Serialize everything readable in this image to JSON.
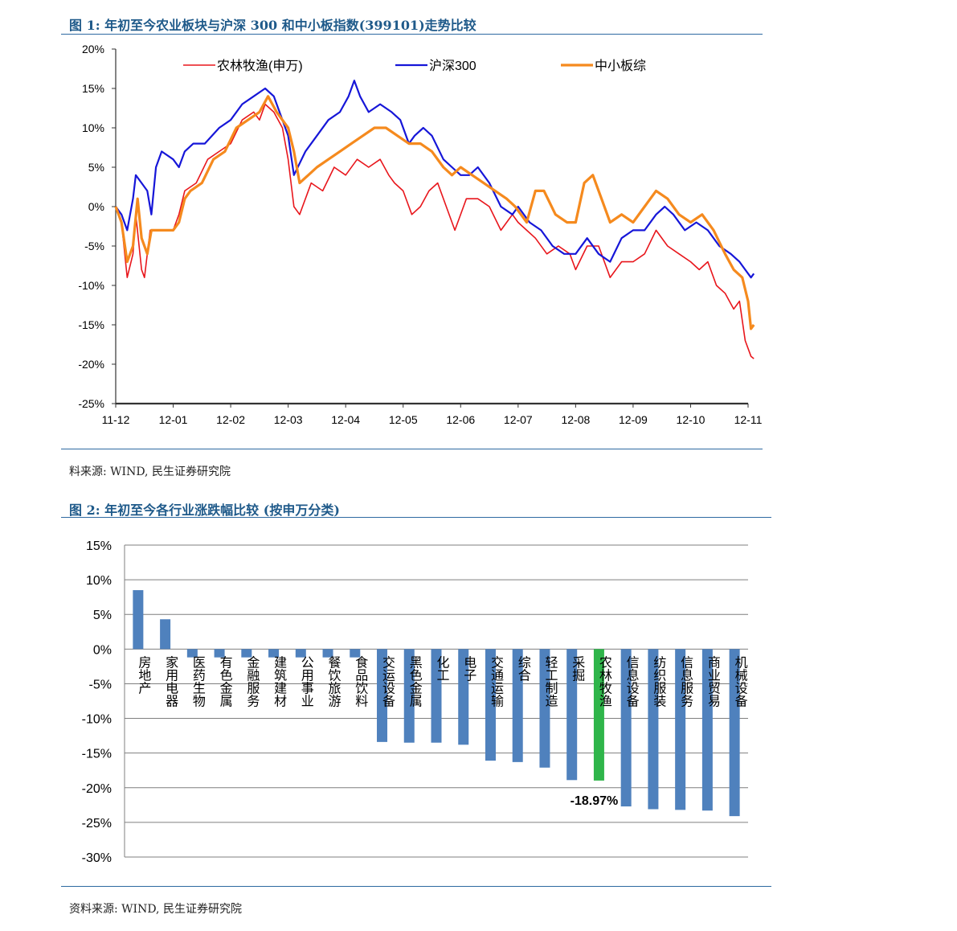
{
  "figure1": {
    "title": "图 1:  年初至今农业板块与沪深 300 和中小板指数(399101)走势比较",
    "source": "料来源:  WIND, 民生证券研究院"
  },
  "figure2": {
    "title": "图 2:  年初至今各行业涨跌幅比较 (按申万分类)",
    "source": "资料来源:  WIND, 民生证券研究院"
  },
  "colors": {
    "agri": "#e8161c",
    "hs300": "#1616d8",
    "smb": "#f58a1e",
    "bar": "#4f81bd",
    "highlight": "#2fb54a",
    "title_blue": "#1f5a8a"
  },
  "chart_data": [
    {
      "type": "line",
      "title": "",
      "x_ticks": [
        "11-12",
        "12-01",
        "12-02",
        "12-03",
        "12-04",
        "12-05",
        "12-06",
        "12-07",
        "12-08",
        "12-09",
        "12-10",
        "12-11"
      ],
      "y_ticks": [
        "20%",
        "15%",
        "10%",
        "5%",
        "0%",
        "-5%",
        "-10%",
        "-15%",
        "-20%",
        "-25%"
      ],
      "ylim": [
        -25,
        20
      ],
      "y_unit": "%",
      "legend_position": "top",
      "grid": false,
      "series": [
        {
          "name": "农林牧渔(申万)",
          "color": "#e8161c",
          "width": 1.6,
          "points": [
            [
              0,
              0
            ],
            [
              0.1,
              -2
            ],
            [
              0.2,
              -9
            ],
            [
              0.3,
              -6
            ],
            [
              0.35,
              -1
            ],
            [
              0.45,
              -8
            ],
            [
              0.5,
              -9
            ],
            [
              0.55,
              -6
            ],
            [
              0.6,
              -3
            ],
            [
              1.0,
              -3
            ],
            [
              1.1,
              -1
            ],
            [
              1.2,
              2
            ],
            [
              1.4,
              3
            ],
            [
              1.6,
              6
            ],
            [
              1.8,
              7
            ],
            [
              2.0,
              8
            ],
            [
              2.2,
              11
            ],
            [
              2.4,
              12
            ],
            [
              2.5,
              11
            ],
            [
              2.6,
              13
            ],
            [
              2.75,
              12
            ],
            [
              2.9,
              10
            ],
            [
              3.0,
              6
            ],
            [
              3.1,
              0
            ],
            [
              3.2,
              -1
            ],
            [
              3.4,
              3
            ],
            [
              3.6,
              2
            ],
            [
              3.8,
              5
            ],
            [
              4.0,
              4
            ],
            [
              4.2,
              6
            ],
            [
              4.4,
              5
            ],
            [
              4.6,
              6
            ],
            [
              4.75,
              4
            ],
            [
              4.85,
              3
            ],
            [
              5.0,
              2
            ],
            [
              5.15,
              -1
            ],
            [
              5.3,
              0
            ],
            [
              5.45,
              2
            ],
            [
              5.6,
              3
            ],
            [
              5.75,
              0
            ],
            [
              5.9,
              -3
            ],
            [
              6.1,
              1
            ],
            [
              6.3,
              1
            ],
            [
              6.5,
              0
            ],
            [
              6.7,
              -3
            ],
            [
              6.9,
              -1
            ],
            [
              7.0,
              -2
            ],
            [
              7.15,
              -3
            ],
            [
              7.3,
              -4
            ],
            [
              7.5,
              -6
            ],
            [
              7.7,
              -5
            ],
            [
              7.9,
              -6
            ],
            [
              8.0,
              -8
            ],
            [
              8.2,
              -5
            ],
            [
              8.4,
              -5
            ],
            [
              8.6,
              -9
            ],
            [
              8.8,
              -7
            ],
            [
              9.0,
              -7
            ],
            [
              9.2,
              -6
            ],
            [
              9.4,
              -3
            ],
            [
              9.6,
              -5
            ],
            [
              9.8,
              -6
            ],
            [
              10.0,
              -7
            ],
            [
              10.15,
              -8
            ],
            [
              10.3,
              -7
            ],
            [
              10.45,
              -10
            ],
            [
              10.6,
              -11
            ],
            [
              10.75,
              -13
            ],
            [
              10.85,
              -12
            ],
            [
              10.95,
              -17
            ],
            [
              11.05,
              -19
            ],
            [
              11.1,
              -19.3
            ]
          ]
        },
        {
          "name": "沪深300",
          "color": "#1616d8",
          "width": 2.2,
          "points": [
            [
              0,
              0
            ],
            [
              0.1,
              -1
            ],
            [
              0.2,
              -3
            ],
            [
              0.3,
              1
            ],
            [
              0.35,
              4
            ],
            [
              0.45,
              3
            ],
            [
              0.55,
              2
            ],
            [
              0.62,
              -1
            ],
            [
              0.7,
              5
            ],
            [
              0.8,
              7
            ],
            [
              1.0,
              6
            ],
            [
              1.1,
              5
            ],
            [
              1.2,
              7
            ],
            [
              1.35,
              8
            ],
            [
              1.55,
              8
            ],
            [
              1.8,
              10
            ],
            [
              2.0,
              11
            ],
            [
              2.2,
              13
            ],
            [
              2.4,
              14
            ],
            [
              2.6,
              15
            ],
            [
              2.75,
              14
            ],
            [
              2.9,
              11
            ],
            [
              3.0,
              9
            ],
            [
              3.1,
              4
            ],
            [
              3.3,
              7
            ],
            [
              3.5,
              9
            ],
            [
              3.7,
              11
            ],
            [
              3.9,
              12
            ],
            [
              4.05,
              14
            ],
            [
              4.15,
              16
            ],
            [
              4.25,
              14
            ],
            [
              4.4,
              12
            ],
            [
              4.6,
              13
            ],
            [
              4.8,
              12
            ],
            [
              4.95,
              11
            ],
            [
              5.1,
              8
            ],
            [
              5.2,
              9
            ],
            [
              5.35,
              10
            ],
            [
              5.5,
              9
            ],
            [
              5.7,
              6
            ],
            [
              5.85,
              5
            ],
            [
              6.0,
              4
            ],
            [
              6.15,
              4
            ],
            [
              6.3,
              5
            ],
            [
              6.5,
              3
            ],
            [
              6.7,
              0
            ],
            [
              6.9,
              -1
            ],
            [
              7.0,
              0
            ],
            [
              7.2,
              -2
            ],
            [
              7.4,
              -3
            ],
            [
              7.6,
              -5
            ],
            [
              7.8,
              -6
            ],
            [
              8.0,
              -6
            ],
            [
              8.2,
              -4
            ],
            [
              8.4,
              -6
            ],
            [
              8.6,
              -7
            ],
            [
              8.8,
              -4
            ],
            [
              9.0,
              -3
            ],
            [
              9.2,
              -3
            ],
            [
              9.4,
              -1
            ],
            [
              9.55,
              0
            ],
            [
              9.7,
              -1
            ],
            [
              9.9,
              -3
            ],
            [
              10.1,
              -2
            ],
            [
              10.3,
              -3
            ],
            [
              10.5,
              -5
            ],
            [
              10.7,
              -6
            ],
            [
              10.85,
              -7
            ],
            [
              10.95,
              -8
            ],
            [
              11.05,
              -9
            ],
            [
              11.1,
              -8.5
            ]
          ]
        },
        {
          "name": "中小板综",
          "color": "#f58a1e",
          "width": 3.2,
          "points": [
            [
              0,
              0
            ],
            [
              0.1,
              -2
            ],
            [
              0.2,
              -7
            ],
            [
              0.3,
              -5
            ],
            [
              0.38,
              1
            ],
            [
              0.45,
              -4
            ],
            [
              0.55,
              -6
            ],
            [
              0.62,
              -3
            ],
            [
              1.0,
              -3
            ],
            [
              1.1,
              -2
            ],
            [
              1.2,
              1
            ],
            [
              1.3,
              2
            ],
            [
              1.5,
              3
            ],
            [
              1.7,
              6
            ],
            [
              1.9,
              7
            ],
            [
              2.1,
              10
            ],
            [
              2.3,
              11
            ],
            [
              2.5,
              12
            ],
            [
              2.65,
              14
            ],
            [
              2.8,
              12
            ],
            [
              3.0,
              10
            ],
            [
              3.1,
              7
            ],
            [
              3.2,
              3
            ],
            [
              3.35,
              4
            ],
            [
              3.5,
              5
            ],
            [
              3.7,
              6
            ],
            [
              3.9,
              7
            ],
            [
              4.1,
              8
            ],
            [
              4.3,
              9
            ],
            [
              4.5,
              10
            ],
            [
              4.7,
              10
            ],
            [
              4.9,
              9
            ],
            [
              5.1,
              8
            ],
            [
              5.3,
              8
            ],
            [
              5.5,
              7
            ],
            [
              5.7,
              5
            ],
            [
              5.85,
              4
            ],
            [
              6.0,
              5
            ],
            [
              6.2,
              4
            ],
            [
              6.4,
              3
            ],
            [
              6.6,
              2
            ],
            [
              6.8,
              1
            ],
            [
              6.95,
              0
            ],
            [
              7.15,
              -2
            ],
            [
              7.3,
              2
            ],
            [
              7.45,
              2
            ],
            [
              7.65,
              -1
            ],
            [
              7.85,
              -2
            ],
            [
              8.0,
              -2
            ],
            [
              8.15,
              3
            ],
            [
              8.3,
              4
            ],
            [
              8.45,
              1
            ],
            [
              8.6,
              -2
            ],
            [
              8.8,
              -1
            ],
            [
              9.0,
              -2
            ],
            [
              9.2,
              0
            ],
            [
              9.4,
              2
            ],
            [
              9.6,
              1
            ],
            [
              9.8,
              -1
            ],
            [
              10.0,
              -2
            ],
            [
              10.2,
              -1
            ],
            [
              10.4,
              -3
            ],
            [
              10.6,
              -6
            ],
            [
              10.75,
              -8
            ],
            [
              10.9,
              -9
            ],
            [
              11.0,
              -12
            ],
            [
              11.05,
              -15.5
            ],
            [
              11.1,
              -15
            ]
          ]
        }
      ]
    },
    {
      "type": "bar",
      "title": "",
      "ylim": [
        -30,
        15
      ],
      "y_ticks": [
        "15%",
        "10%",
        "5%",
        "0%",
        "-5%",
        "-10%",
        "-15%",
        "-20%",
        "-25%",
        "-30%"
      ],
      "y_unit": "%",
      "grid": true,
      "categories": [
        "房地产",
        "家用电器",
        "医药生物",
        "有色金属",
        "金融服务",
        "建筑建材",
        "公用事业",
        "餐饮旅游",
        "食品饮料",
        "交运设备",
        "黑色金属",
        "化工",
        "电子",
        "交通运输",
        "综合",
        "轻工制造",
        "采掘",
        "农林牧渔",
        "信息设备",
        "纺织服装",
        "信息服务",
        "商业贸易",
        "机械设备"
      ],
      "values": [
        8.5,
        4.3,
        -1.2,
        -1.2,
        -1.2,
        -1.2,
        -1.2,
        -1.2,
        -1.2,
        -13.4,
        -13.5,
        -13.5,
        -13.8,
        -16.1,
        -16.3,
        -17.1,
        -18.9,
        -18.97,
        -22.7,
        -23.1,
        -23.2,
        -23.3,
        -24.1
      ],
      "highlight_index": 17,
      "annotation": "-18.97%"
    }
  ]
}
